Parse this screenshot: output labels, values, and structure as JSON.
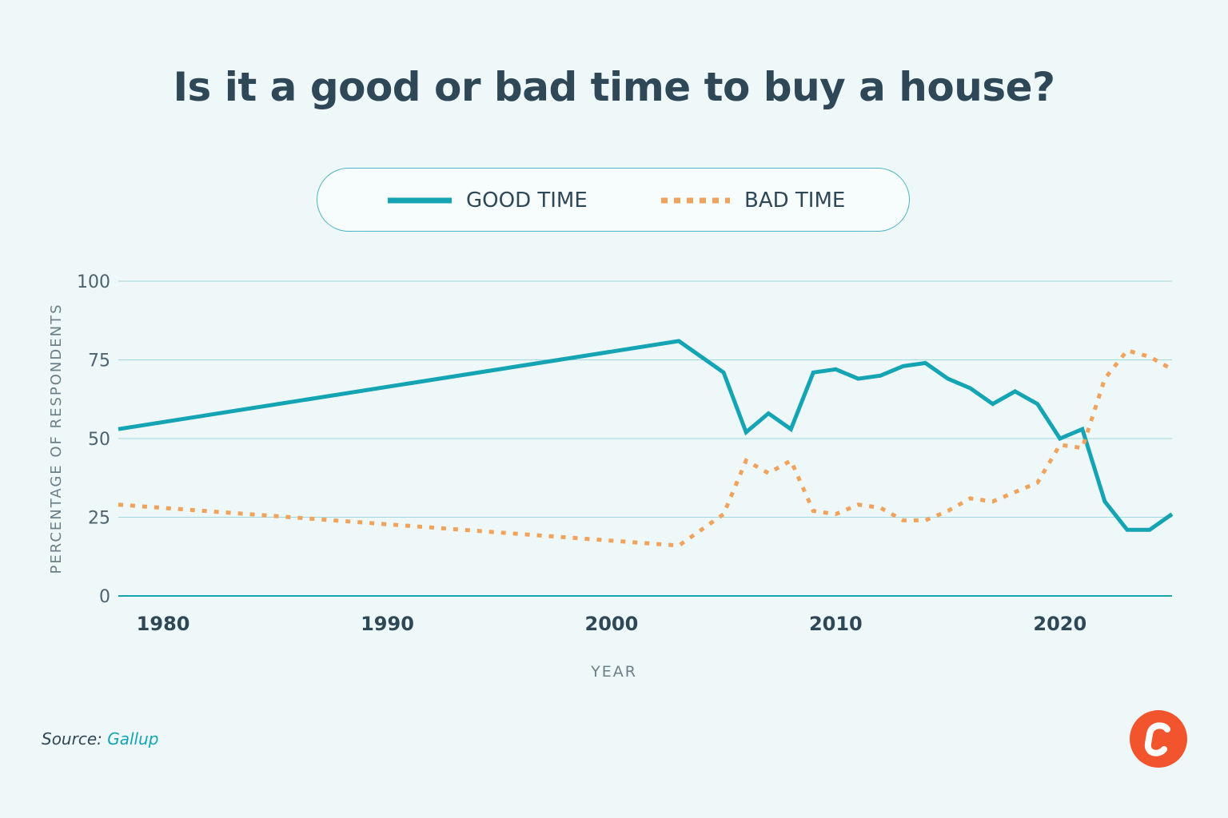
{
  "title": "Is it a good or bad time to buy a house?",
  "legend": {
    "good": "GOOD TIME",
    "bad": "BAD TIME"
  },
  "source": {
    "label": "Source:",
    "name": "Gallup"
  },
  "logo": {
    "icon": "brand-logo-c"
  },
  "colors": {
    "good": "#14a4b3",
    "bad": "#f0a35c",
    "grid": "#9fd8de",
    "axis_text": "#2f4858",
    "ylabel_text": "#6b7f88",
    "logo": "#f2542d"
  },
  "chart_data": {
    "type": "line",
    "title": "Is it a good or bad time to buy a house?",
    "xlabel": "YEAR",
    "ylabel": "PERCENTAGE OF RESPONDENTS",
    "xlim": [
      1978,
      2025
    ],
    "ylim": [
      0,
      100
    ],
    "xticks": [
      1980,
      1990,
      2000,
      2010,
      2020
    ],
    "yticks": [
      0,
      25,
      50,
      75,
      100
    ],
    "grid": true,
    "legend_position": "top-center",
    "series": [
      {
        "name": "GOOD TIME",
        "style": "solid",
        "x": [
          1978,
          2003,
          2005,
          2006,
          2007,
          2008,
          2009,
          2010,
          2011,
          2012,
          2013,
          2014,
          2015,
          2016,
          2017,
          2018,
          2019,
          2020,
          2021,
          2022,
          2023,
          2024,
          2025
        ],
        "y": [
          53,
          81,
          71,
          52,
          58,
          53,
          71,
          72,
          69,
          70,
          73,
          74,
          69,
          66,
          61,
          65,
          61,
          50,
          53,
          30,
          21,
          21,
          26
        ]
      },
      {
        "name": "BAD TIME",
        "style": "dotted",
        "x": [
          1978,
          2003,
          2005,
          2006,
          2007,
          2008,
          2009,
          2010,
          2011,
          2012,
          2013,
          2014,
          2015,
          2016,
          2017,
          2018,
          2019,
          2020,
          2021,
          2022,
          2023,
          2024,
          2025
        ],
        "y": [
          29,
          16,
          26,
          43,
          39,
          43,
          27,
          26,
          29,
          28,
          24,
          24,
          27,
          31,
          30,
          33,
          36,
          48,
          47,
          69,
          78,
          76,
          72
        ]
      }
    ]
  }
}
